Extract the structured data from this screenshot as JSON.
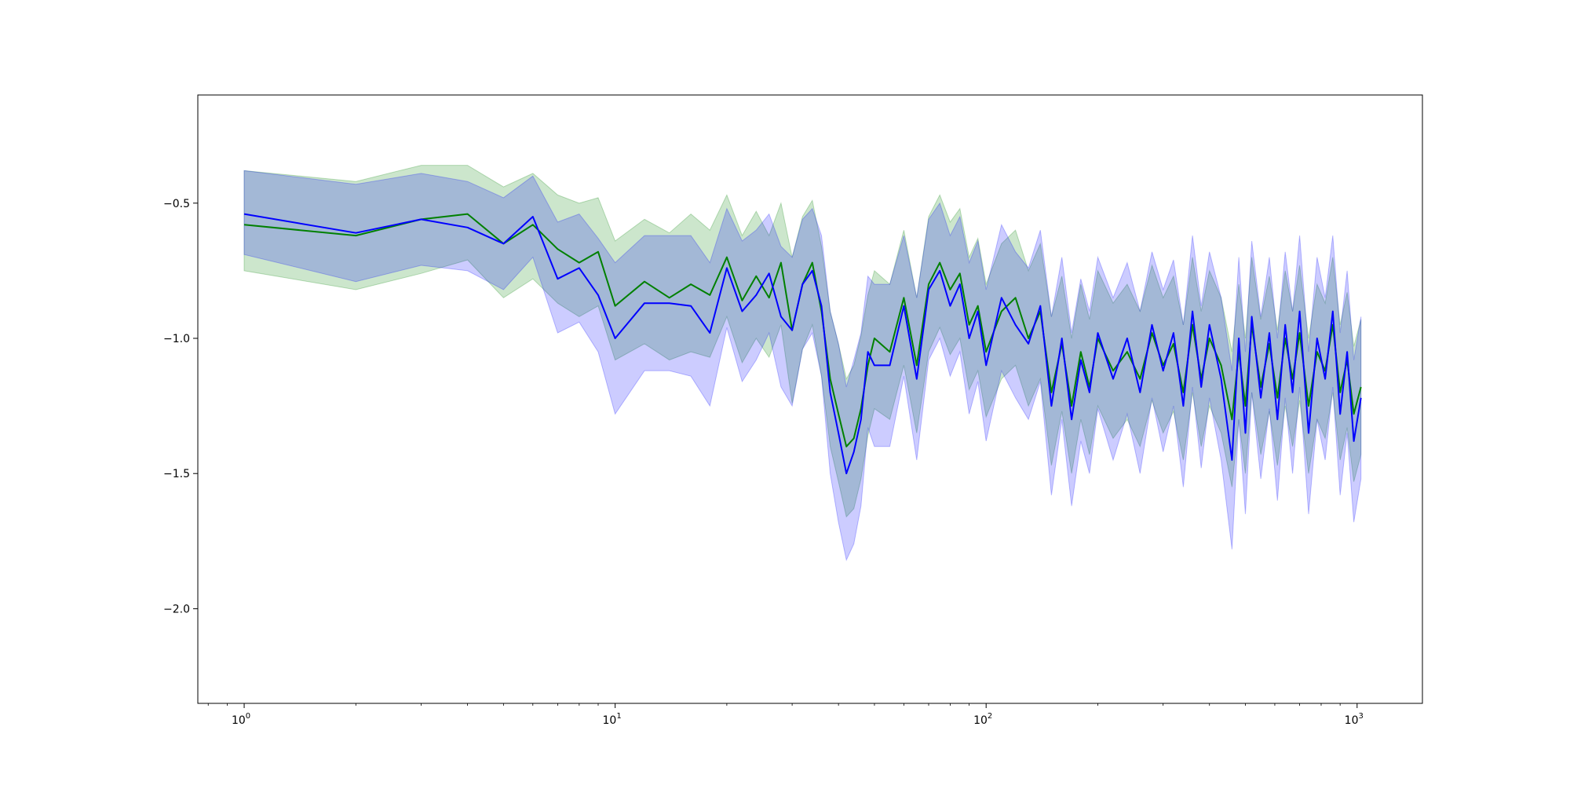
{
  "chart_data": {
    "type": "line",
    "title": "",
    "xlabel": "",
    "ylabel": "",
    "x_scale": "log",
    "xlim": [
      0.75,
      1500
    ],
    "ylim": [
      -2.35,
      -0.1
    ],
    "grid": false,
    "legend": "none",
    "x_ticks": [
      {
        "value": 1,
        "base": "10",
        "exp": "0"
      },
      {
        "value": 10,
        "base": "10",
        "exp": "1"
      },
      {
        "value": 100,
        "base": "10",
        "exp": "2"
      },
      {
        "value": 1000,
        "base": "10",
        "exp": "3"
      }
    ],
    "y_ticks": [
      {
        "value": -0.5,
        "label": "−0.5"
      },
      {
        "value": -1.0,
        "label": "−1.0"
      },
      {
        "value": -1.5,
        "label": "−1.5"
      },
      {
        "value": -2.0,
        "label": "−2.0"
      }
    ],
    "x": [
      1,
      2,
      3,
      4,
      5,
      6,
      7,
      8,
      9,
      10,
      12,
      14,
      16,
      18,
      20,
      22,
      24,
      26,
      28,
      30,
      32,
      34,
      36,
      38,
      40,
      42,
      44,
      46,
      48,
      50,
      55,
      60,
      65,
      70,
      75,
      80,
      85,
      90,
      95,
      100,
      110,
      120,
      130,
      140,
      150,
      160,
      170,
      180,
      190,
      200,
      220,
      240,
      260,
      280,
      300,
      320,
      340,
      360,
      380,
      400,
      430,
      460,
      480,
      500,
      520,
      550,
      580,
      610,
      640,
      670,
      700,
      740,
      780,
      820,
      860,
      900,
      940,
      980,
      1024
    ],
    "series": [
      {
        "color": "#008000",
        "band_color": "#008000",
        "values": [
          -0.58,
          -0.62,
          -0.56,
          -0.54,
          -0.65,
          -0.58,
          -0.67,
          -0.72,
          -0.68,
          -0.88,
          -0.79,
          -0.85,
          -0.8,
          -0.84,
          -0.7,
          -0.86,
          -0.77,
          -0.85,
          -0.72,
          -0.97,
          -0.8,
          -0.72,
          -0.9,
          -1.15,
          -1.28,
          -1.4,
          -1.37,
          -1.26,
          -1.1,
          -1.0,
          -1.05,
          -0.85,
          -1.1,
          -0.8,
          -0.72,
          -0.82,
          -0.76,
          -0.95,
          -0.88,
          -1.05,
          -0.9,
          -0.85,
          -1.0,
          -0.9,
          -1.2,
          -1.02,
          -1.25,
          -1.05,
          -1.18,
          -1.0,
          -1.12,
          -1.05,
          -1.15,
          -0.98,
          -1.1,
          -1.02,
          -1.2,
          -0.95,
          -1.15,
          -1.0,
          -1.1,
          -1.3,
          -1.05,
          -1.25,
          -0.95,
          -1.18,
          -1.02,
          -1.22,
          -1.0,
          -1.15,
          -0.98,
          -1.25,
          -1.05,
          -1.12,
          -0.95,
          -1.2,
          -1.08,
          -1.28,
          -1.18
        ],
        "lower": [
          -0.75,
          -0.82,
          -0.76,
          -0.71,
          -0.85,
          -0.78,
          -0.87,
          -0.92,
          -0.88,
          -1.08,
          -1.02,
          -1.08,
          -1.05,
          -1.07,
          -0.92,
          -1.09,
          -1.0,
          -1.07,
          -0.95,
          -1.24,
          -1.04,
          -0.95,
          -1.14,
          -1.4,
          -1.53,
          -1.66,
          -1.63,
          -1.52,
          -1.36,
          -1.26,
          -1.3,
          -1.1,
          -1.35,
          -1.05,
          -0.96,
          -1.06,
          -1.0,
          -1.19,
          -1.12,
          -1.29,
          -1.15,
          -1.1,
          -1.25,
          -1.15,
          -1.47,
          -1.27,
          -1.5,
          -1.3,
          -1.43,
          -1.25,
          -1.37,
          -1.3,
          -1.4,
          -1.23,
          -1.35,
          -1.27,
          -1.45,
          -1.2,
          -1.4,
          -1.25,
          -1.35,
          -1.55,
          -1.3,
          -1.5,
          -1.2,
          -1.43,
          -1.27,
          -1.47,
          -1.25,
          -1.4,
          -1.23,
          -1.5,
          -1.3,
          -1.37,
          -1.2,
          -1.45,
          -1.33,
          -1.53,
          -1.43
        ],
        "upper": [
          -0.38,
          -0.42,
          -0.36,
          -0.36,
          -0.44,
          -0.39,
          -0.47,
          -0.5,
          -0.48,
          -0.64,
          -0.56,
          -0.61,
          -0.54,
          -0.6,
          -0.47,
          -0.62,
          -0.53,
          -0.62,
          -0.5,
          -0.7,
          -0.55,
          -0.49,
          -0.66,
          -0.9,
          -1.02,
          -1.15,
          -1.1,
          -0.99,
          -0.84,
          -0.75,
          -0.8,
          -0.6,
          -0.85,
          -0.55,
          -0.47,
          -0.57,
          -0.52,
          -0.7,
          -0.63,
          -0.8,
          -0.65,
          -0.6,
          -0.75,
          -0.65,
          -0.92,
          -0.77,
          -1.0,
          -0.8,
          -0.93,
          -0.75,
          -0.87,
          -0.8,
          -0.9,
          -0.73,
          -0.85,
          -0.77,
          -0.95,
          -0.7,
          -0.9,
          -0.75,
          -0.85,
          -1.05,
          -0.8,
          -1.0,
          -0.7,
          -0.93,
          -0.77,
          -0.97,
          -0.75,
          -0.9,
          -0.73,
          -1.0,
          -0.8,
          -0.87,
          -0.7,
          -0.95,
          -0.83,
          -1.03,
          -0.93
        ]
      },
      {
        "color": "#0000ff",
        "band_color": "#0000ff",
        "values": [
          -0.54,
          -0.61,
          -0.56,
          -0.59,
          -0.65,
          -0.55,
          -0.78,
          -0.74,
          -0.84,
          -1.0,
          -0.87,
          -0.87,
          -0.88,
          -0.98,
          -0.74,
          -0.9,
          -0.84,
          -0.76,
          -0.92,
          -0.97,
          -0.8,
          -0.75,
          -0.88,
          -1.2,
          -1.35,
          -1.5,
          -1.42,
          -1.3,
          -1.05,
          -1.1,
          -1.1,
          -0.88,
          -1.15,
          -0.82,
          -0.75,
          -0.88,
          -0.8,
          -1.0,
          -0.9,
          -1.1,
          -0.85,
          -0.95,
          -1.02,
          -0.88,
          -1.25,
          -1.0,
          -1.3,
          -1.08,
          -1.2,
          -0.98,
          -1.15,
          -1.0,
          -1.2,
          -0.95,
          -1.12,
          -0.98,
          -1.25,
          -0.9,
          -1.18,
          -0.95,
          -1.15,
          -1.45,
          -1.0,
          -1.35,
          -0.92,
          -1.22,
          -0.98,
          -1.3,
          -0.95,
          -1.2,
          -0.9,
          -1.35,
          -1.0,
          -1.15,
          -0.9,
          -1.28,
          -1.05,
          -1.38,
          -1.22
        ],
        "lower": [
          -0.69,
          -0.79,
          -0.73,
          -0.75,
          -0.82,
          -0.7,
          -0.98,
          -0.94,
          -1.05,
          -1.28,
          -1.12,
          -1.12,
          -1.14,
          -1.25,
          -0.96,
          -1.16,
          -1.08,
          -0.98,
          -1.18,
          -1.25,
          -1.04,
          -0.98,
          -1.14,
          -1.5,
          -1.68,
          -1.82,
          -1.76,
          -1.62,
          -1.33,
          -1.4,
          -1.4,
          -1.14,
          -1.45,
          -1.08,
          -1.0,
          -1.14,
          -1.05,
          -1.28,
          -1.16,
          -1.38,
          -1.12,
          -1.22,
          -1.3,
          -1.16,
          -1.58,
          -1.3,
          -1.62,
          -1.38,
          -1.5,
          -1.26,
          -1.45,
          -1.28,
          -1.5,
          -1.22,
          -1.42,
          -1.25,
          -1.55,
          -1.18,
          -1.48,
          -1.22,
          -1.45,
          -1.78,
          -1.3,
          -1.65,
          -1.2,
          -1.52,
          -1.26,
          -1.6,
          -1.22,
          -1.5,
          -1.18,
          -1.65,
          -1.3,
          -1.45,
          -1.18,
          -1.58,
          -1.35,
          -1.68,
          -1.52
        ],
        "upper": [
          -0.38,
          -0.43,
          -0.39,
          -0.42,
          -0.48,
          -0.4,
          -0.57,
          -0.54,
          -0.63,
          -0.72,
          -0.62,
          -0.62,
          -0.62,
          -0.72,
          -0.52,
          -0.64,
          -0.6,
          -0.54,
          -0.66,
          -0.7,
          -0.56,
          -0.52,
          -0.62,
          -0.9,
          -1.02,
          -1.18,
          -1.08,
          -0.98,
          -0.77,
          -0.8,
          -0.8,
          -0.62,
          -0.85,
          -0.56,
          -0.5,
          -0.62,
          -0.55,
          -0.72,
          -0.64,
          -0.82,
          -0.58,
          -0.68,
          -0.74,
          -0.6,
          -0.92,
          -0.7,
          -0.98,
          -0.78,
          -0.9,
          -0.7,
          -0.85,
          -0.72,
          -0.9,
          -0.68,
          -0.82,
          -0.71,
          -0.95,
          -0.62,
          -0.88,
          -0.68,
          -0.85,
          -1.12,
          -0.7,
          -1.05,
          -0.64,
          -0.92,
          -0.7,
          -1.0,
          -0.68,
          -0.9,
          -0.62,
          -1.05,
          -0.7,
          -0.85,
          -0.62,
          -0.98,
          -0.75,
          -1.08,
          -0.92
        ]
      }
    ]
  }
}
